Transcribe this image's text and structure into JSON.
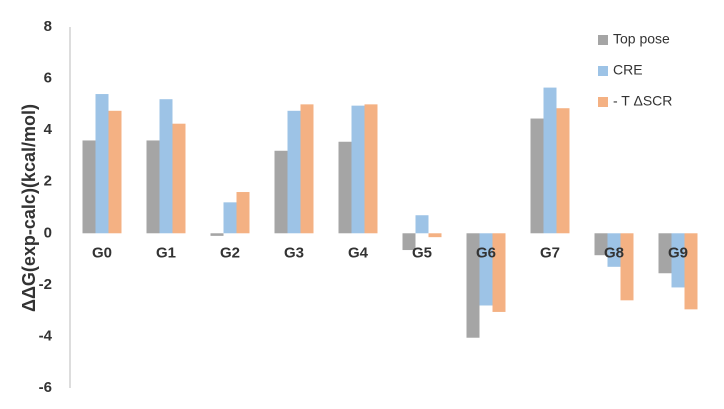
{
  "chart_data": {
    "type": "bar",
    "ylabel": "ΔΔG(exp-calc)(kcal/mol)",
    "categories": [
      "G0",
      "G1",
      "G2",
      "G3",
      "G4",
      "G5",
      "G6",
      "G7",
      "G8",
      "G9"
    ],
    "series": [
      {
        "name": "Top pose",
        "color": "#a5a5a5",
        "values": [
          3.6,
          3.6,
          -0.1,
          3.2,
          3.55,
          -0.65,
          -4.05,
          4.45,
          -0.85,
          -1.55
        ]
      },
      {
        "name": "CRE",
        "color": "#9dc3e6",
        "values": [
          5.4,
          5.2,
          1.2,
          4.75,
          4.95,
          0.7,
          -2.8,
          5.65,
          -1.3,
          -2.1
        ]
      },
      {
        "name": "- T ΔSCR",
        "color": "#f4b183",
        "values": [
          4.75,
          4.25,
          1.6,
          5.0,
          5.0,
          -0.15,
          -3.05,
          4.85,
          -2.6,
          -2.95
        ]
      }
    ],
    "ylim": [
      -6,
      8
    ],
    "yticks": [
      -6,
      -4,
      -2,
      0,
      2,
      4,
      6,
      8
    ],
    "grid": false
  }
}
